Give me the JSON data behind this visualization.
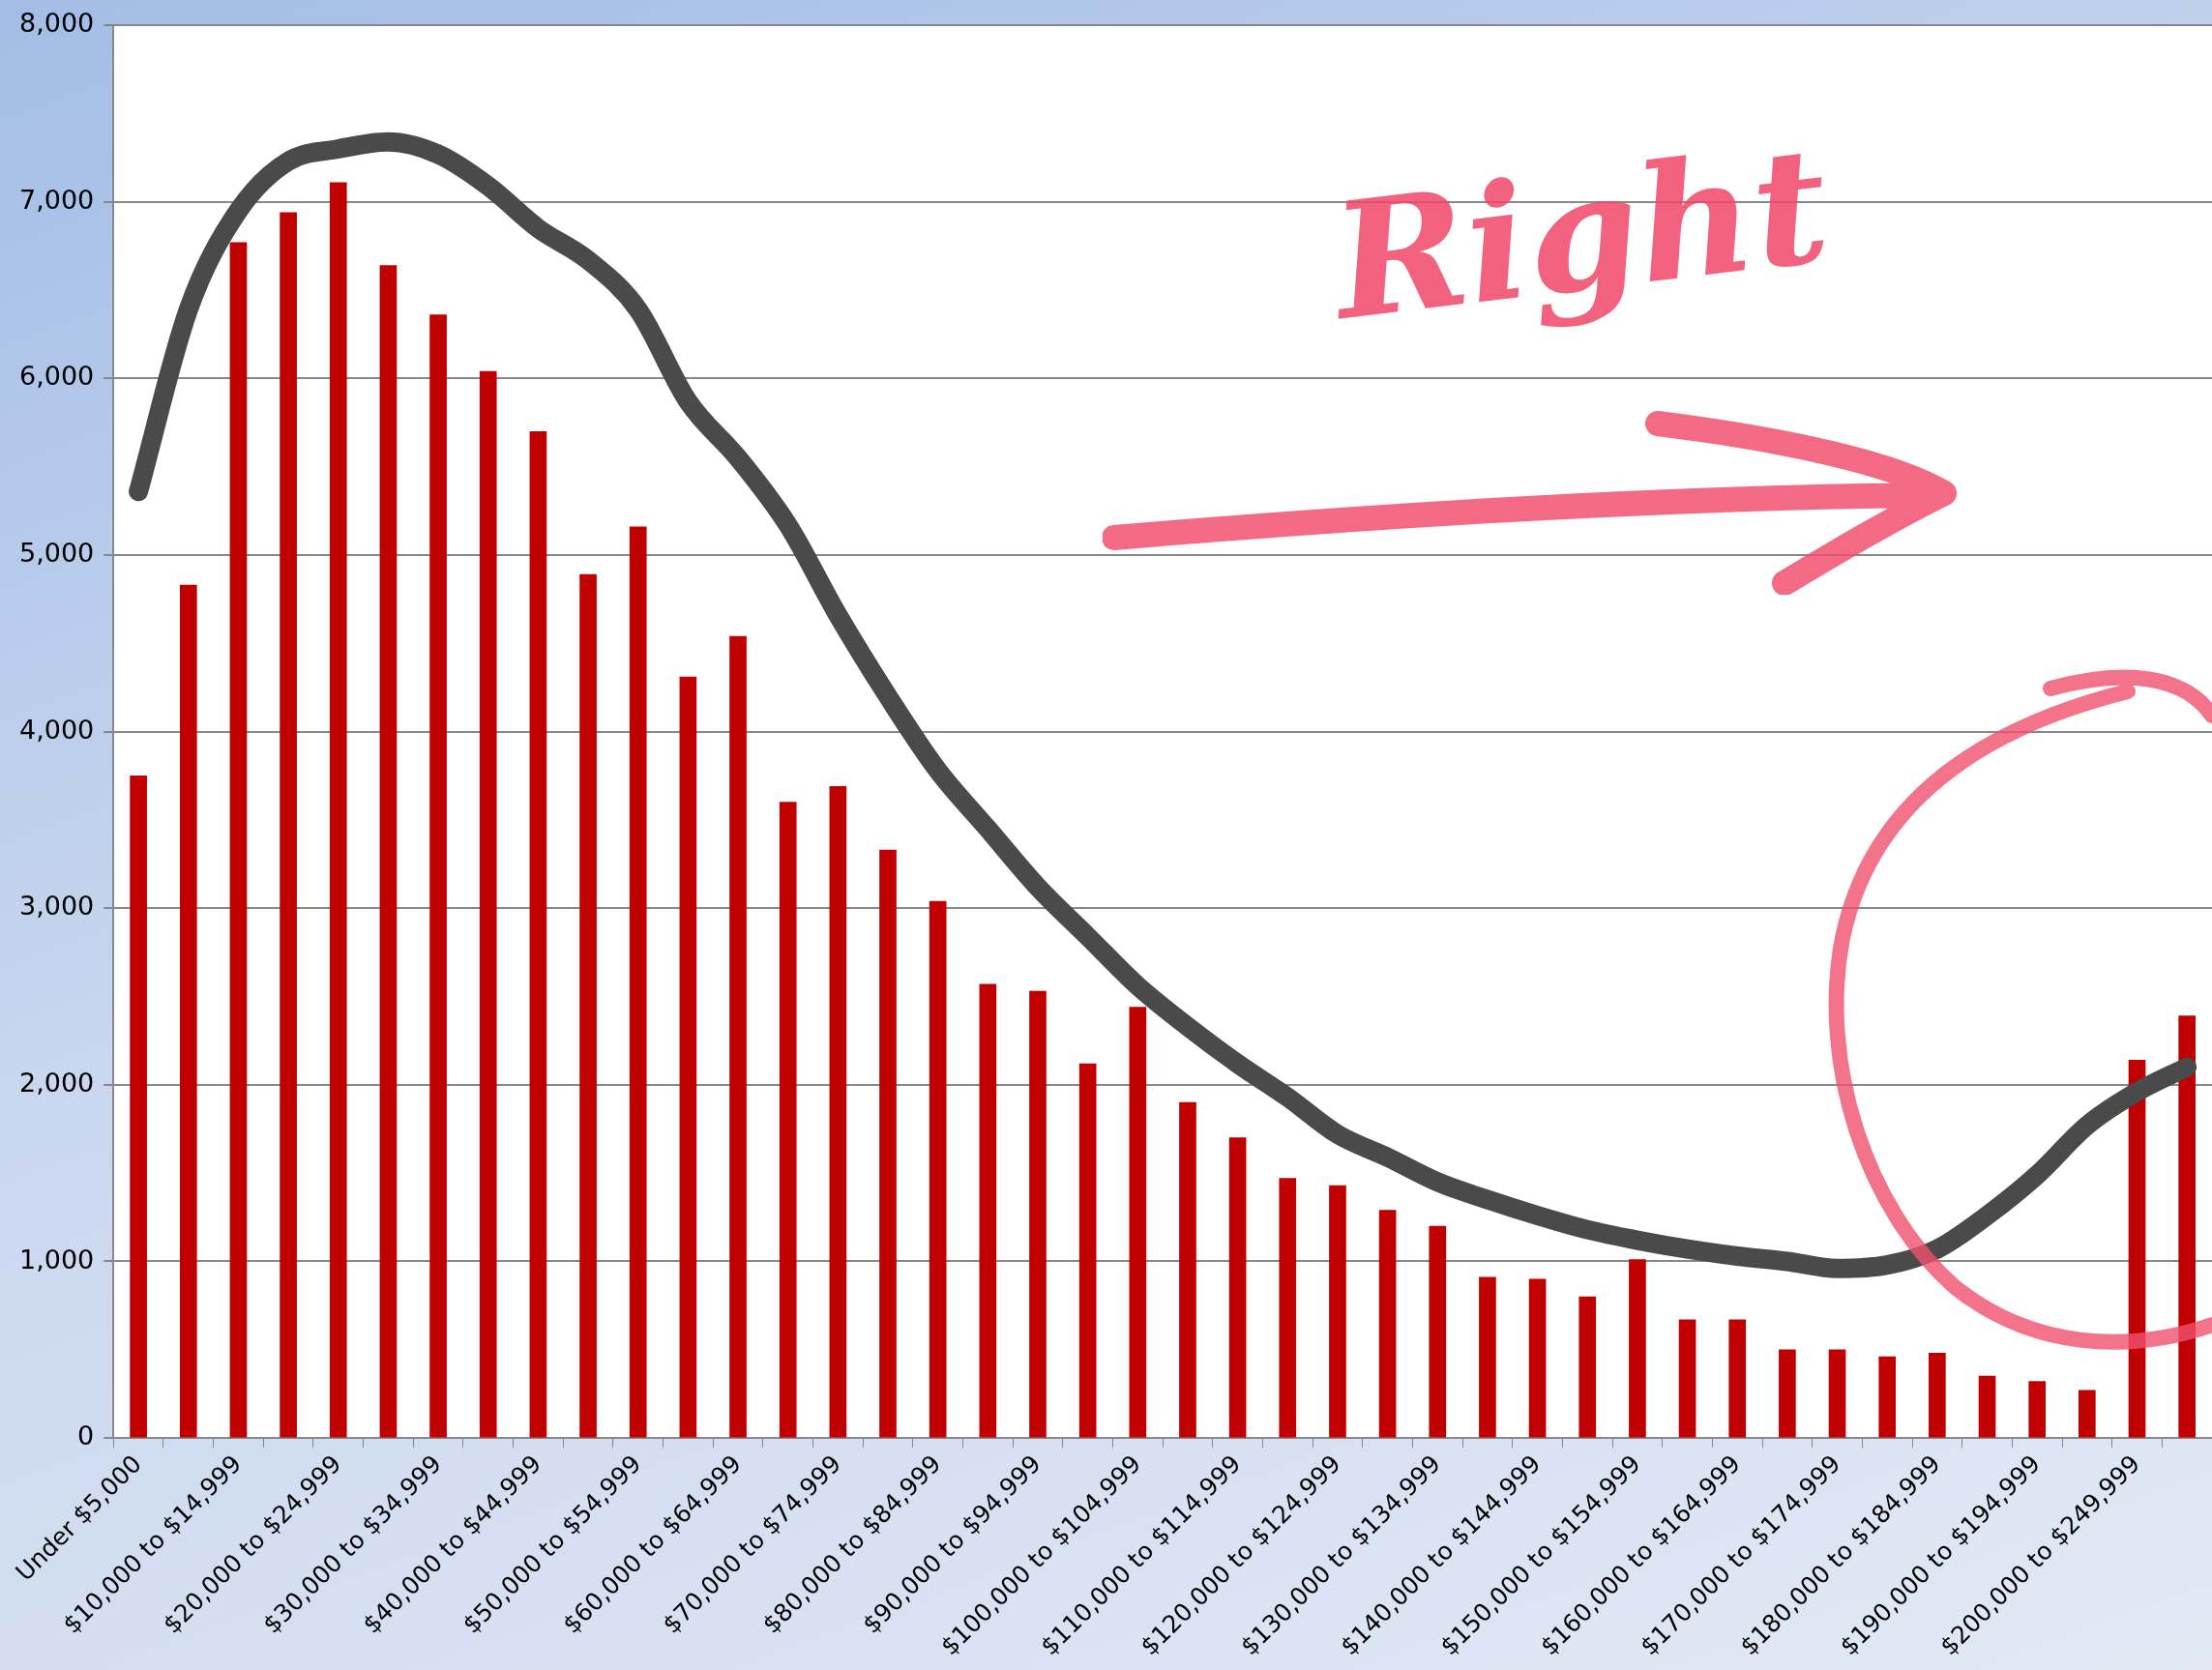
{
  "chart_data": {
    "type": "bar",
    "categories": [
      "Under $5,000",
      null,
      "$10,000 to $14,999",
      null,
      "$20,000 to $24,999",
      null,
      "$30,000 to $34,999",
      null,
      "$40,000 to $44,999",
      null,
      "$50,000 to $54,999",
      null,
      "$60,000 to $64,999",
      null,
      "$70,000 to $74,999",
      null,
      "$80,000 to $84,999",
      null,
      "$90,000 to $94,999",
      null,
      "$100,000 to $104,999",
      null,
      "$110,000 to $114,999",
      null,
      "$120,000 to $124,999",
      null,
      "$130,000 to $134,999",
      null,
      "$140,000 to $144,999",
      null,
      "$150,000 to $154,999",
      null,
      "$160,000 to $164,999",
      null,
      "$170,000 to $174,999",
      null,
      "$180,000 to $184,999",
      null,
      "$190,000 to $194,999",
      null,
      "$200,000 to $249,999",
      null
    ],
    "series": [
      {
        "color": "#c00000",
        "values": [
          3750,
          4830,
          6770,
          6940,
          7110,
          6640,
          6360,
          6040,
          5700,
          4890,
          5160,
          4310,
          4540,
          3600,
          3690,
          3330,
          3040,
          2570,
          2530,
          2120,
          2440,
          1900,
          1700,
          1470,
          1430,
          1290,
          1200,
          910,
          900,
          800,
          1010,
          670,
          670,
          500,
          500,
          460,
          480,
          350,
          320,
          270,
          2140,
          2390
        ]
      },
      {
        "type": "line",
        "color": "#4a4a4a",
        "values": [
          5360,
          6390,
          6950,
          7230,
          7300,
          7340,
          7270,
          7090,
          6850,
          6670,
          6390,
          5870,
          5550,
          5170,
          4660,
          4200,
          3780,
          3450,
          3120,
          2840,
          2560,
          2330,
          2120,
          1930,
          1720,
          1590,
          1450,
          1350,
          1260,
          1180,
          1120,
          1070,
          1030,
          1000,
          960,
          980,
          1070,
          1260,
          1490,
          1770,
          1960,
          2100
        ]
      }
    ],
    "ylim": [
      0,
      8000
    ],
    "yticks": [
      {
        "value": 0,
        "label": "0"
      },
      {
        "value": 1000,
        "label": "1,000"
      },
      {
        "value": 2000,
        "label": "2,000"
      },
      {
        "value": 3000,
        "label": "3,000"
      },
      {
        "value": 4000,
        "label": "4,000"
      },
      {
        "value": 5000,
        "label": "5,000"
      },
      {
        "value": 6000,
        "label": "6,000"
      },
      {
        "value": 7000,
        "label": "7,000"
      },
      {
        "value": 8000,
        "label": "8,000"
      }
    ],
    "grid": "y",
    "legend": false,
    "marker": "none",
    "annotations": [
      "Right"
    ]
  }
}
